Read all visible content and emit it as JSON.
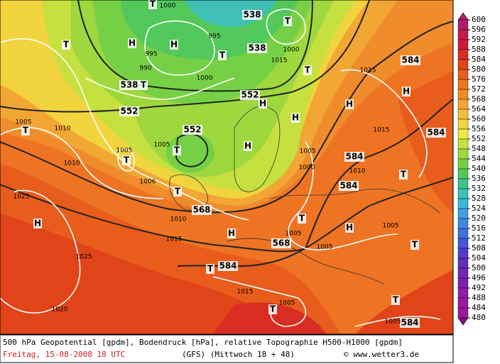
{
  "map_labels": [
    "T",
    "T",
    "H",
    "H",
    "T",
    "995",
    "995",
    "990",
    "538",
    "538",
    "538",
    "T",
    "1000",
    "552",
    "552",
    "552",
    "T",
    "1005",
    "T",
    "1005",
    "T",
    "1005",
    "1010",
    "1010",
    "1006",
    "T",
    "1010",
    "568",
    "568",
    "1015",
    "H",
    "H",
    "1025",
    "1025",
    "1020",
    "T",
    "584",
    "1015",
    "1005",
    "T",
    "T",
    "1005",
    "1005",
    "H",
    "T",
    "1005",
    "T",
    "584",
    "1005",
    "H",
    "584",
    "584",
    "1015",
    "1015",
    "584",
    "584",
    "T",
    "1005",
    "1000",
    "1010",
    "H",
    "H",
    "H",
    "H",
    "T",
    "T",
    "1000",
    "1015",
    "1000"
  ],
  "colorbar": {
    "ticks": [
      600,
      596,
      592,
      588,
      584,
      580,
      576,
      572,
      568,
      564,
      560,
      556,
      552,
      548,
      544,
      540,
      536,
      532,
      528,
      524,
      520,
      516,
      512,
      508,
      504,
      500,
      496,
      492,
      488,
      484,
      480
    ],
    "colors": [
      "#b01e6a",
      "#c21c4e",
      "#d01a36",
      "#d92c22",
      "#e14418",
      "#e85c1c",
      "#ee7424",
      "#f08c2c",
      "#f2a634",
      "#f2bc3c",
      "#f2d43e",
      "#ece844",
      "#c6e040",
      "#9ed83e",
      "#76d046",
      "#52c85a",
      "#40c28a",
      "#3ec0b4",
      "#40b6d6",
      "#409ee0",
      "#4088e0",
      "#4070dc",
      "#4658d6",
      "#5040c8",
      "#5e30bf",
      "#6e28b6",
      "#7e20ae",
      "#8c1ea8",
      "#961ca2",
      "#9c1a9c",
      "#7c1082"
    ]
  },
  "caption": {
    "line1": "500 hPa Geopotential [gpdm], Bodendruck [hPa], relative Topographie H500-H1000 [gpdm]",
    "date": "Freitag, 15-08-2008  18 UTC",
    "model": "(GFS)  (Mittwoch 18 + 48)",
    "source": "© www.wetter3.de"
  }
}
